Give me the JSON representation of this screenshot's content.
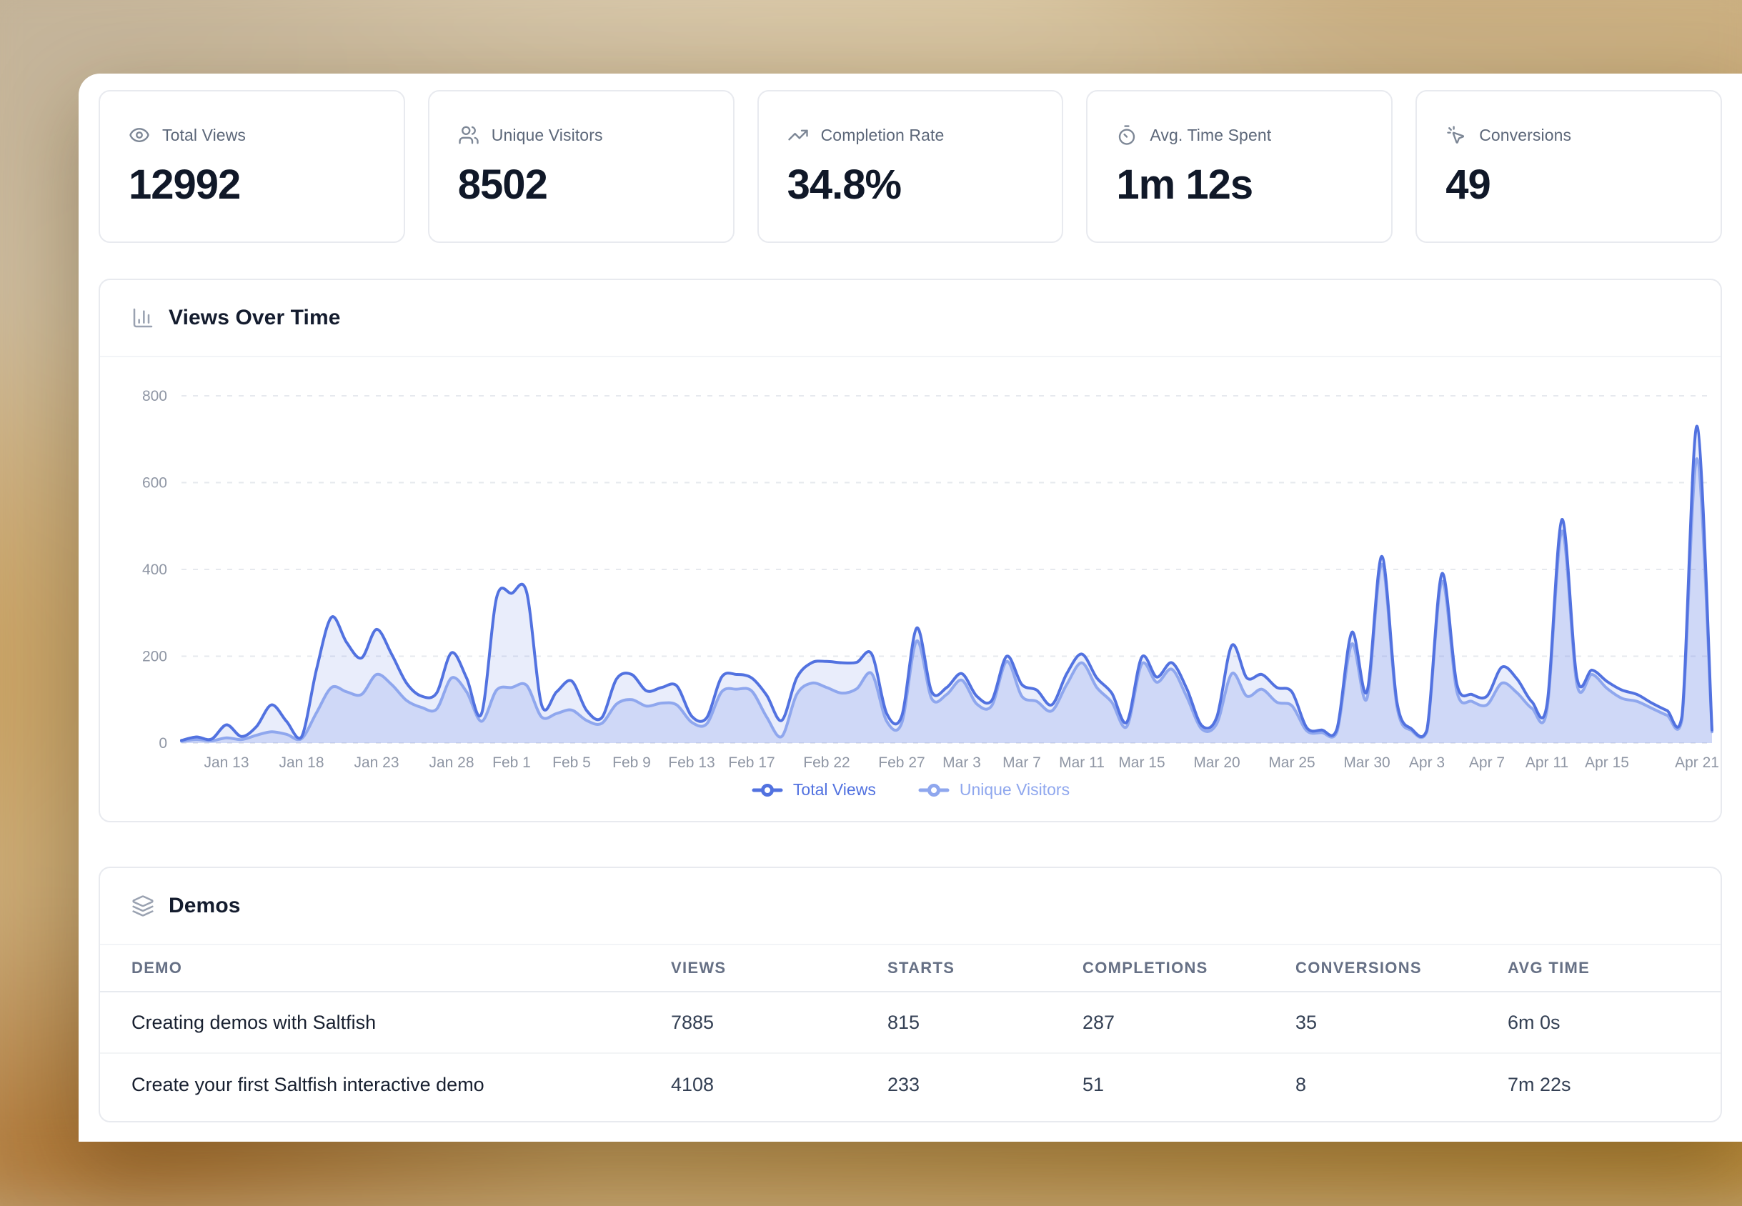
{
  "stats": [
    {
      "icon": "eye-icon",
      "label": "Total Views",
      "value": "12992"
    },
    {
      "icon": "users-icon",
      "label": "Unique Visitors",
      "value": "8502"
    },
    {
      "icon": "trending-up-icon",
      "label": "Completion Rate",
      "value": "34.8%"
    },
    {
      "icon": "timer-icon",
      "label": "Avg. Time Spent",
      "value": "1m 12s"
    },
    {
      "icon": "cursor-click-icon",
      "label": "Conversions",
      "value": "49"
    }
  ],
  "views_chart": {
    "title": "Views Over Time"
  },
  "chart_data": {
    "type": "area",
    "title": "Views Over Time",
    "ylim": [
      0,
      800
    ],
    "yticks": [
      0,
      200,
      400,
      600,
      800
    ],
    "grid": "horizontal-dashed",
    "legend_position": "bottom",
    "x": [
      "Jan 10",
      "Jan 11",
      "Jan 12",
      "Jan 13",
      "Jan 14",
      "Jan 15",
      "Jan 16",
      "Jan 17",
      "Jan 18",
      "Jan 19",
      "Jan 20",
      "Jan 21",
      "Jan 22",
      "Jan 23",
      "Jan 24",
      "Jan 25",
      "Jan 26",
      "Jan 27",
      "Jan 28",
      "Jan 29",
      "Jan 30",
      "Jan 31",
      "Feb 1",
      "Feb 2",
      "Feb 3",
      "Feb 4",
      "Feb 5",
      "Feb 6",
      "Feb 7",
      "Feb 8",
      "Feb 9",
      "Feb 10",
      "Feb 11",
      "Feb 12",
      "Feb 13",
      "Feb 14",
      "Feb 15",
      "Feb 16",
      "Feb 17",
      "Feb 18",
      "Feb 19",
      "Feb 20",
      "Feb 21",
      "Feb 22",
      "Feb 23",
      "Feb 24",
      "Feb 25",
      "Feb 26",
      "Feb 27",
      "Feb 28",
      "Mar 1",
      "Mar 2",
      "Mar 3",
      "Mar 4",
      "Mar 5",
      "Mar 6",
      "Mar 7",
      "Mar 8",
      "Mar 9",
      "Mar 10",
      "Mar 11",
      "Mar 12",
      "Mar 13",
      "Mar 14",
      "Mar 15",
      "Mar 16",
      "Mar 17",
      "Mar 18",
      "Mar 19",
      "Mar 20",
      "Mar 21",
      "Mar 22",
      "Mar 23",
      "Mar 24",
      "Mar 25",
      "Mar 26",
      "Mar 27",
      "Mar 28",
      "Mar 29",
      "Mar 30",
      "Mar 31",
      "Apr 1",
      "Apr 2",
      "Apr 3",
      "Apr 4",
      "Apr 5",
      "Apr 6",
      "Apr 7",
      "Apr 8",
      "Apr 9",
      "Apr 10",
      "Apr 11",
      "Apr 12",
      "Apr 13",
      "Apr 14",
      "Apr 15",
      "Apr 16",
      "Apr 17",
      "Apr 18",
      "Apr 19",
      "Apr 20",
      "Apr 21",
      "Apr 22"
    ],
    "xtick_labels": [
      "Jan 13",
      "Jan 18",
      "Jan 23",
      "Jan 28",
      "Feb 1",
      "Feb 5",
      "Feb 9",
      "Feb 13",
      "Feb 17",
      "Feb 22",
      "Feb 27",
      "Mar 3",
      "Mar 7",
      "Mar 11",
      "Mar 15",
      "Mar 20",
      "Mar 25",
      "Mar 30",
      "Apr 3",
      "Apr 7",
      "Apr 11",
      "Apr 15",
      "Apr 21"
    ],
    "xtick_indices": [
      3,
      8,
      13,
      18,
      22,
      26,
      30,
      34,
      38,
      43,
      48,
      52,
      56,
      60,
      64,
      69,
      74,
      79,
      83,
      87,
      91,
      95,
      101
    ],
    "series": [
      {
        "name": "Total Views",
        "color": "#5272e0",
        "fill": "rgba(82,114,224,0.13)",
        "values": [
          6,
          14,
          9,
          42,
          15,
          38,
          88,
          50,
          14,
          170,
          290,
          232,
          196,
          262,
          205,
          138,
          108,
          115,
          208,
          150,
          68,
          335,
          345,
          348,
          88,
          118,
          143,
          75,
          58,
          148,
          158,
          120,
          128,
          132,
          62,
          58,
          152,
          158,
          150,
          110,
          52,
          150,
          185,
          188,
          185,
          186,
          205,
          68,
          62,
          265,
          118,
          128,
          160,
          108,
          98,
          200,
          135,
          122,
          88,
          160,
          205,
          150,
          115,
          48,
          198,
          152,
          185,
          125,
          40,
          60,
          225,
          150,
          158,
          128,
          118,
          35,
          30,
          32,
          255,
          118,
          430,
          95,
          32,
          30,
          390,
          135,
          112,
          108,
          175,
          148,
          95,
          88,
          515,
          150,
          168,
          142,
          122,
          112,
          92,
          75,
          62,
          730,
          30
        ]
      },
      {
        "name": "Unique Visitors",
        "color": "#8fa7ee",
        "fill": "rgba(130,155,235,0.25)",
        "values": [
          4,
          8,
          5,
          12,
          8,
          18,
          26,
          20,
          10,
          70,
          128,
          118,
          112,
          158,
          135,
          98,
          82,
          78,
          150,
          118,
          50,
          122,
          128,
          133,
          60,
          68,
          76,
          52,
          45,
          90,
          100,
          85,
          92,
          88,
          48,
          44,
          118,
          124,
          120,
          60,
          15,
          112,
          138,
          128,
          115,
          125,
          160,
          50,
          46,
          235,
          102,
          112,
          145,
          90,
          86,
          188,
          108,
          96,
          74,
          135,
          185,
          128,
          94,
          38,
          182,
          140,
          170,
          106,
          32,
          45,
          160,
          108,
          124,
          94,
          86,
          28,
          24,
          25,
          228,
          102,
          412,
          85,
          28,
          26,
          372,
          118,
          96,
          88,
          138,
          116,
          80,
          76,
          488,
          135,
          158,
          126,
          103,
          96,
          80,
          64,
          54,
          655,
          26
        ]
      }
    ]
  },
  "demos_table": {
    "title": "Demos",
    "columns": [
      "DEMO",
      "VIEWS",
      "STARTS",
      "COMPLETIONS",
      "CONVERSIONS",
      "AVG TIME"
    ],
    "rows": [
      [
        "Creating demos with Saltfish",
        "7885",
        "815",
        "287",
        "35",
        "6m 0s"
      ],
      [
        "Create your first Saltfish interactive demo",
        "4108",
        "233",
        "51",
        "8",
        "7m 22s"
      ]
    ]
  },
  "colors": {
    "accent_dark_blue": "#5272e0",
    "accent_light_blue": "#8fa7ee",
    "grid_line": "#e6e9ee",
    "tick_label": "#8f96a4"
  }
}
